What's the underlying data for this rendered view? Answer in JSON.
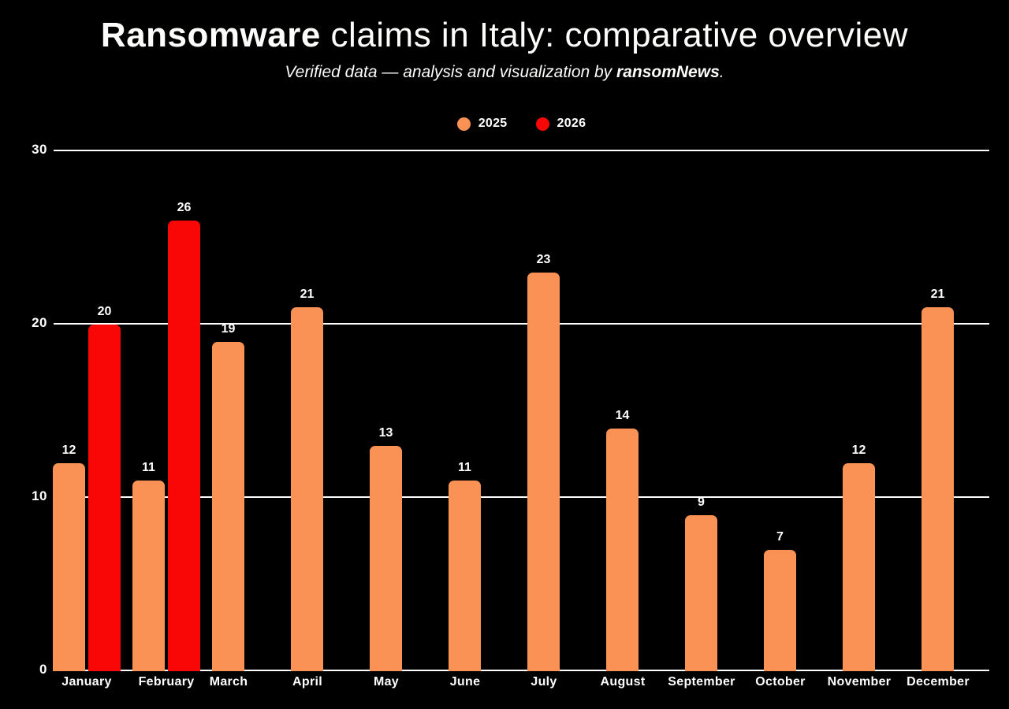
{
  "header": {
    "title_emphasis": "Ransomware",
    "title_rest": " claims in Italy: comparative overview",
    "subtitle_prefix": "Verified data — analysis and visualization by ",
    "subtitle_brand": "ransomNews",
    "subtitle_suffix": "."
  },
  "colors": {
    "background": "#000000",
    "text": "#FFFFFF",
    "grid": "#FFFFFF",
    "series_2025": "#FA9255",
    "series_2026": "#F90707"
  },
  "chart_data": {
    "type": "bar",
    "title": "Ransomware claims in Italy: comparative overview",
    "subtitle": "Verified data — analysis and visualization by ransomNews.",
    "categories": [
      "January",
      "February",
      "March",
      "April",
      "May",
      "June",
      "July",
      "August",
      "September",
      "October",
      "November",
      "December"
    ],
    "series": [
      {
        "name": "2025",
        "color": "#FA9255",
        "values": [
          12,
          11,
          19,
          21,
          13,
          11,
          23,
          14,
          9,
          7,
          12,
          21
        ]
      },
      {
        "name": "2026",
        "color": "#F90707",
        "values": [
          20,
          26,
          null,
          null,
          null,
          null,
          null,
          null,
          null,
          null,
          null,
          null
        ]
      }
    ],
    "ylim": [
      0,
      30
    ],
    "yticks": [
      0,
      10,
      20,
      30
    ],
    "grid": true,
    "legend_position": "top-center",
    "bar_value_labels": true
  }
}
